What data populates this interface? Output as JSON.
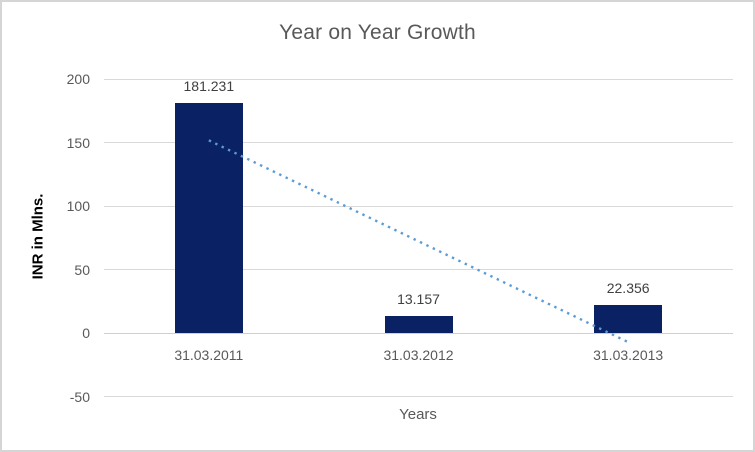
{
  "window": {
    "background": "#ffffff",
    "border_color": "#d5d5d5"
  },
  "chart_data": {
    "type": "bar",
    "title": "Year on Year Growth",
    "categories": [
      "31.03.2011",
      "31.03.2012",
      "31.03.2013"
    ],
    "values": [
      181.231,
      13.157,
      22.356
    ],
    "data_labels": [
      "181.231",
      "13.157",
      "22.356"
    ],
    "xlabel": "Years",
    "ylabel": "INR in Mlns.",
    "ylim": [
      -50,
      200
    ],
    "yticks": [
      200,
      150,
      100,
      50,
      0,
      -50
    ],
    "grid": true,
    "legend": "none",
    "series": [
      {
        "name": "yearly-values",
        "type": "bar",
        "color": "#0a2164",
        "values": [
          181.231,
          13.157,
          22.356
        ]
      },
      {
        "name": "linear-trendline",
        "type": "dotted-line",
        "color": "#5b9bd5",
        "start_value": 151.7,
        "end_value": -7.2
      }
    ],
    "colors": {
      "title_text": "#595959",
      "axis_text": "#595959",
      "data_label_text": "#404040",
      "ylabel_text": "#000000",
      "gridline": "#d9d9d9",
      "axis_line": "#cfcfcf",
      "bar": "#0a2164",
      "trendline": "#5b9bd5"
    }
  }
}
